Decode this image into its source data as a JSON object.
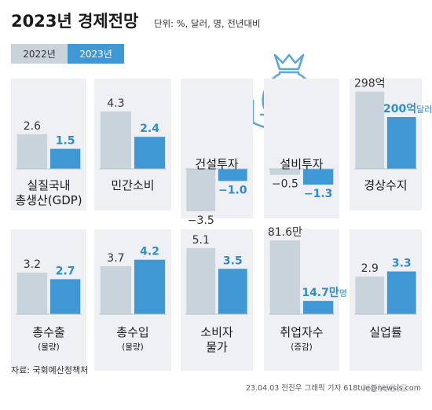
{
  "header": {
    "title": "2023년 경제전망",
    "subtitle": "단위: %, 달러, 명, 전년대비"
  },
  "legend": [
    {
      "label": "2022년",
      "color": "#c9d3dc",
      "text_color": "#333333"
    },
    {
      "label": "2023년",
      "color": "#3f97d4",
      "text_color": "#ffffff"
    }
  ],
  "colors": {
    "y2022": "#c9d3dc",
    "y2023": "#3f97d4",
    "label2023": "#2f8ccd"
  },
  "icon": "money-bag-hand-icon",
  "chart_data": [
    {
      "type": "bar",
      "name": "실질국내 총생산",
      "label_lines": [
        "실질국내",
        "총생산(GDP)"
      ],
      "sub": "",
      "categories": [
        "2022년",
        "2023년"
      ],
      "values": [
        2.6,
        1.5
      ],
      "labels": [
        "2.6",
        "1.5"
      ]
    },
    {
      "type": "bar",
      "name": "민간소비",
      "label_lines": [
        "민간소비"
      ],
      "sub": "",
      "categories": [
        "2022년",
        "2023년"
      ],
      "values": [
        4.3,
        2.4
      ],
      "labels": [
        "4.3",
        "2.4"
      ]
    },
    {
      "type": "bar",
      "name": "건설투자",
      "label_lines": [
        "건설투자"
      ],
      "sub": "",
      "categories": [
        "2022년",
        "2023년"
      ],
      "values": [
        -3.5,
        -1.0
      ],
      "labels": [
        "−3.5",
        "−1.0"
      ]
    },
    {
      "type": "bar",
      "name": "설비투자",
      "label_lines": [
        "설비투자"
      ],
      "sub": "",
      "categories": [
        "2022년",
        "2023년"
      ],
      "values": [
        -0.5,
        -1.3
      ],
      "labels": [
        "−0.5",
        "−1.3"
      ]
    },
    {
      "type": "bar",
      "name": "경상수지",
      "label_lines": [
        "경상수지"
      ],
      "sub": "",
      "unit": "달러",
      "categories": [
        "2022년",
        "2023년"
      ],
      "values": [
        298,
        200
      ],
      "labels": [
        "298억",
        "200억"
      ],
      "label_suffix": [
        "",
        "달러"
      ]
    },
    {
      "type": "bar",
      "name": "총수출",
      "label_lines": [
        "총수출"
      ],
      "sub": "(물량)",
      "categories": [
        "2022년",
        "2023년"
      ],
      "values": [
        3.2,
        2.7
      ],
      "labels": [
        "3.2",
        "2.7"
      ]
    },
    {
      "type": "bar",
      "name": "총수입",
      "label_lines": [
        "총수입"
      ],
      "sub": "(물량)",
      "categories": [
        "2022년",
        "2023년"
      ],
      "values": [
        3.7,
        4.2
      ],
      "labels": [
        "3.7",
        "4.2"
      ]
    },
    {
      "type": "bar",
      "name": "소비자 물가",
      "label_lines": [
        "소비자",
        "물가"
      ],
      "sub": "",
      "categories": [
        "2022년",
        "2023년"
      ],
      "values": [
        5.1,
        3.5
      ],
      "labels": [
        "5.1",
        "3.5"
      ]
    },
    {
      "type": "bar",
      "name": "취업자수",
      "label_lines": [
        "취업자수"
      ],
      "sub": "(증감)",
      "unit": "명",
      "categories": [
        "2022년",
        "2023년"
      ],
      "values": [
        816000,
        147000
      ],
      "labels": [
        "81.6만",
        "14.7만"
      ],
      "label_suffix": [
        "",
        "명"
      ]
    },
    {
      "type": "bar",
      "name": "실업률",
      "label_lines": [
        "실업률"
      ],
      "sub": "",
      "categories": [
        "2022년",
        "2023년"
      ],
      "values": [
        2.9,
        3.3
      ],
      "labels": [
        "2.9",
        "3.3"
      ]
    }
  ],
  "footer": {
    "source": "자료: 국회예산정책처",
    "credit": "23.04.03  전진우  그래픽  기자  618tue@newsis.com",
    "watermark": "NEWSIS"
  }
}
